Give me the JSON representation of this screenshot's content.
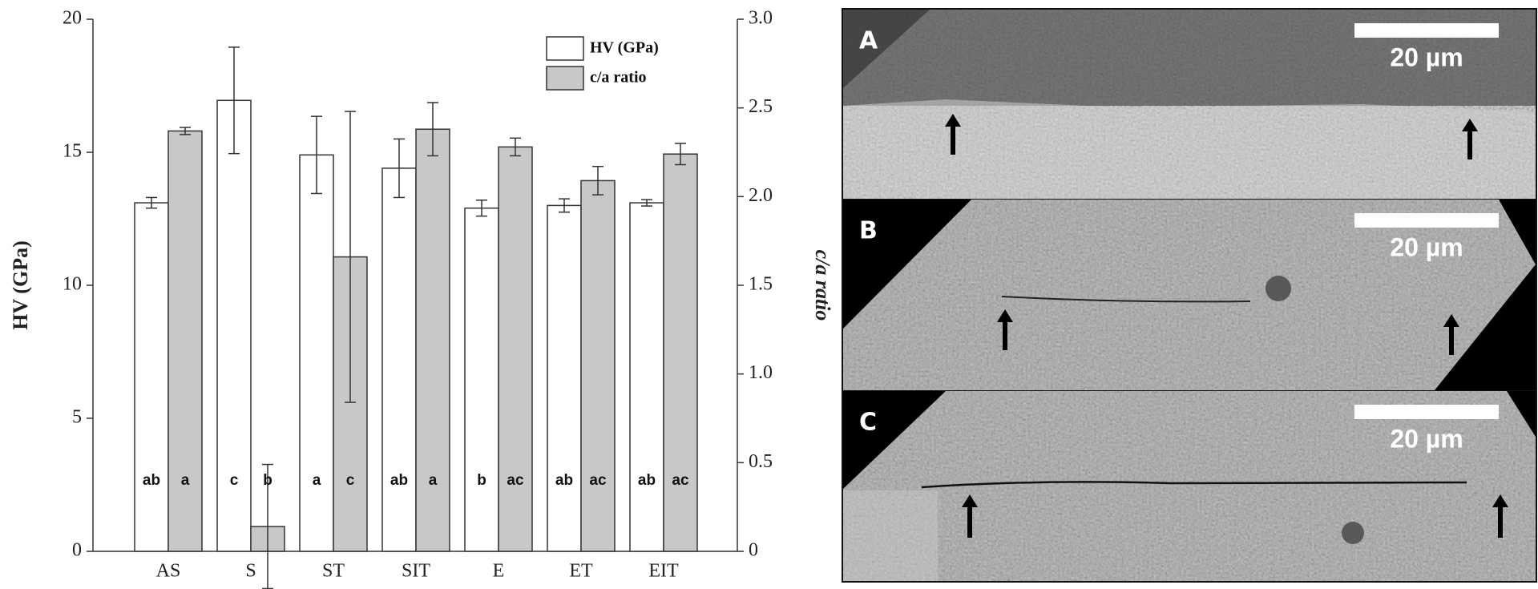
{
  "chart_data": {
    "type": "bar",
    "categories": [
      "AS",
      "S",
      "ST",
      "SIT",
      "E",
      "ET",
      "EIT"
    ],
    "ylabel": "HV (GPa)",
    "y2label": "c/a ratio",
    "ylim": [
      0,
      20
    ],
    "yticks": [
      0,
      5,
      10,
      15,
      20
    ],
    "y2lim": [
      0,
      3
    ],
    "y2ticks": [
      0,
      0.5,
      {
        "value": 1,
        "label": "1.0"
      },
      1.5,
      {
        "value": 2,
        "label": "2.0"
      },
      2.5,
      {
        "value": 3,
        "label": "3.0"
      }
    ],
    "series": [
      {
        "name": "HV (GPa)",
        "color": "#ffffff",
        "values": [
          13.1,
          16.95,
          14.9,
          14.4,
          12.9,
          13.0,
          13.1
        ],
        "errors": [
          0.2,
          2.0,
          1.45,
          1.1,
          0.3,
          0.25,
          0.12
        ],
        "letters": [
          "ab",
          "c",
          "a",
          "ab",
          "b",
          "ab",
          "ab"
        ]
      },
      {
        "name": "c/a ratio",
        "color": "#c8c8c8",
        "axis": "y2",
        "values": [
          2.37,
          0.14,
          1.66,
          2.38,
          2.28,
          2.09,
          2.24
        ],
        "errors": [
          0.02,
          0.35,
          0.82,
          0.15,
          0.05,
          0.08,
          0.06
        ],
        "letters": [
          "a",
          "b",
          "c",
          "a",
          "ac",
          "ac",
          "ac"
        ]
      }
    ]
  },
  "panels": [
    {
      "label": "A",
      "scale_bar": "20 µm"
    },
    {
      "label": "B",
      "scale_bar": "20 µm"
    },
    {
      "label": "C",
      "scale_bar": "20 µm"
    }
  ]
}
